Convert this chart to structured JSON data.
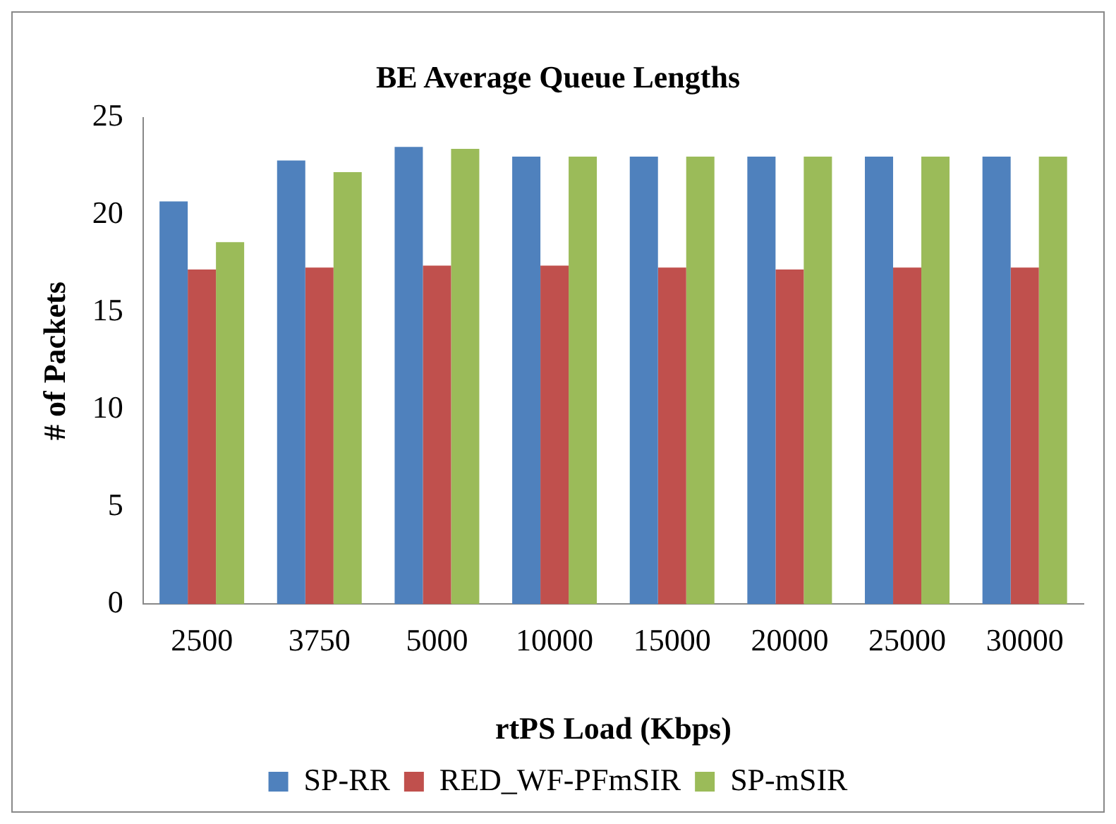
{
  "chart_data": {
    "type": "bar",
    "title": "BE Average Queue Lengths",
    "xlabel": "rtPS Load (Kbps)",
    "ylabel": "# of Packets",
    "categories": [
      "2500",
      "3750",
      "5000",
      "10000",
      "15000",
      "20000",
      "25000",
      "30000"
    ],
    "series": [
      {
        "name": "SP-RR",
        "color": "#4f81bd",
        "values": [
          20.7,
          22.8,
          23.5,
          23.0,
          23.0,
          23.0,
          23.0,
          23.0
        ]
      },
      {
        "name": "RED_WF-PFmSIR",
        "color": "#c0504d",
        "values": [
          17.2,
          17.3,
          17.4,
          17.4,
          17.3,
          17.2,
          17.3,
          17.3
        ]
      },
      {
        "name": "SP-mSIR",
        "color": "#9bbb59",
        "values": [
          18.6,
          22.2,
          23.4,
          23.0,
          23.0,
          23.0,
          23.0,
          23.0
        ]
      }
    ],
    "ylim": [
      0,
      25
    ],
    "yticks": [
      0,
      5,
      10,
      15,
      20,
      25
    ],
    "grid": false,
    "legend": "bottom"
  }
}
